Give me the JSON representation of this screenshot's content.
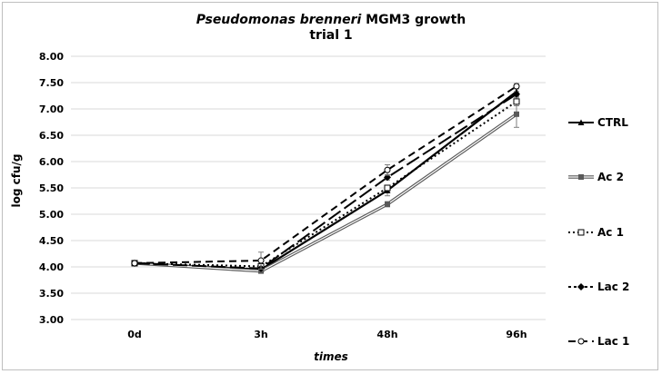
{
  "chart_data": {
    "type": "line",
    "title": {
      "species": "Pseudomonas brenneri",
      "rest": " MGM3 growth",
      "line2": "trial 1"
    },
    "xlabel": "times",
    "ylabel": "log cfu/g",
    "categories": [
      "0d",
      "3h",
      "48h",
      "96h"
    ],
    "ylim": [
      3.0,
      8.0
    ],
    "yticks": [
      "3.00",
      "3.50",
      "4.00",
      "4.50",
      "5.00",
      "5.50",
      "6.00",
      "6.50",
      "7.00",
      "7.50",
      "8.00"
    ],
    "grid": true,
    "legend_position": "right",
    "series": [
      {
        "name": "CTRL",
        "values": [
          4.07,
          3.95,
          5.45,
          7.33
        ],
        "errors": [
          0,
          0.06,
          0.1,
          0.08
        ],
        "color": "#000000",
        "dash": "solid",
        "marker": "triangle"
      },
      {
        "name": "Ac 2",
        "values": [
          4.07,
          3.92,
          5.19,
          6.9
        ],
        "errors": [
          0,
          0.03,
          0.05,
          0.25
        ],
        "color": "#595959",
        "dash": "solid-double",
        "marker": "square"
      },
      {
        "name": "Ac 1",
        "values": [
          4.07,
          4.01,
          5.5,
          7.14
        ],
        "errors": [
          0,
          0.04,
          0.05,
          0.08
        ],
        "color": "#000000",
        "dash": "dotted",
        "marker": "square-open"
      },
      {
        "name": "Lac 2",
        "values": [
          4.07,
          3.97,
          5.7,
          7.28
        ],
        "errors": [
          0,
          0.04,
          0.05,
          0.05
        ],
        "color": "#000000",
        "dash": "long-dash",
        "marker": "diamond"
      },
      {
        "name": "Lac 1",
        "values": [
          4.07,
          4.12,
          5.84,
          7.43
        ],
        "errors": [
          0,
          0.16,
          0.1,
          0.05
        ],
        "color": "#000000",
        "dash": "dashed",
        "marker": "circle-open"
      }
    ]
  }
}
